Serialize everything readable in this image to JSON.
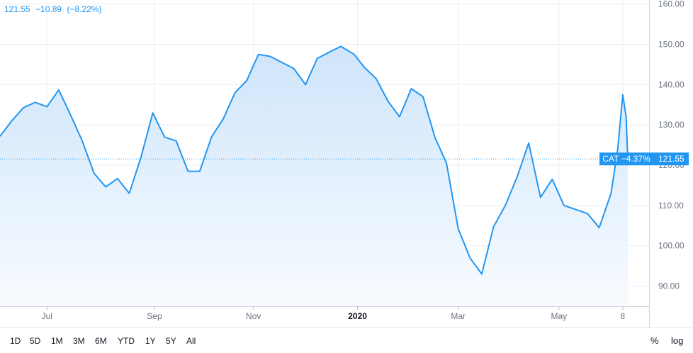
{
  "header": {
    "price": "121.55",
    "change": "−10.89",
    "change_pct": "(−8.22%)"
  },
  "colors": {
    "line": "#2196f3",
    "fill_top": "#cfe5fb",
    "fill_bottom": "#f7fbff",
    "grid": "#eceef2",
    "axis_text": "#6b7280"
  },
  "chart_data": {
    "type": "area",
    "symbol": "CAT",
    "x_ticks": [
      "Jul",
      "Sep",
      "Nov",
      "2020",
      "Mar",
      "May",
      "8"
    ],
    "y_ticks": [
      "160.00",
      "150.00",
      "140.00",
      "130.00",
      "120.00",
      "110.00",
      "100.00",
      "90.00"
    ],
    "ylim": [
      85,
      161
    ],
    "current_price": 121.55,
    "current_label": "CAT −4.37%",
    "current_value_label": "121.55",
    "series": [
      {
        "x": [
          "2019-06-03",
          "2019-06-10",
          "2019-06-17",
          "2019-06-24",
          "2019-07-01",
          "2019-07-08",
          "2019-07-15",
          "2019-07-22",
          "2019-07-29",
          "2019-08-05",
          "2019-08-12",
          "2019-08-19",
          "2019-08-26",
          "2019-09-02",
          "2019-09-09",
          "2019-09-16",
          "2019-09-23",
          "2019-09-30",
          "2019-10-07",
          "2019-10-14",
          "2019-10-21",
          "2019-10-28",
          "2019-11-04",
          "2019-11-11",
          "2019-11-18",
          "2019-11-25",
          "2019-12-02",
          "2019-12-09",
          "2019-12-16",
          "2019-12-23",
          "2019-12-31",
          "2020-01-06",
          "2020-01-13",
          "2020-01-20",
          "2020-01-27",
          "2020-02-03",
          "2020-02-10",
          "2020-02-17",
          "2020-02-24",
          "2020-03-02",
          "2020-03-09",
          "2020-03-16",
          "2020-03-23",
          "2020-03-30",
          "2020-04-06",
          "2020-04-13",
          "2020-04-20",
          "2020-04-27",
          "2020-05-04",
          "2020-05-11",
          "2020-05-18",
          "2020-05-25",
          "2020-06-01",
          "2020-06-05",
          "2020-06-08",
          "2020-06-10",
          "2020-06-11"
        ],
        "values": [
          127.2,
          131.0,
          134.3,
          135.6,
          134.5,
          138.7,
          132.5,
          126.0,
          118.0,
          114.6,
          116.7,
          113.0,
          122.0,
          133.0,
          127.0,
          126.0,
          118.5,
          118.5,
          127.0,
          131.5,
          138.0,
          141.0,
          147.5,
          147.0,
          145.5,
          144.0,
          140.0,
          146.5,
          148.0,
          149.5,
          147.5,
          144.3,
          141.5,
          136.0,
          132.0,
          139.0,
          137.0,
          127.0,
          120.5,
          104.2,
          97.0,
          93.0,
          104.7,
          110.0,
          117.0,
          125.5,
          112.0,
          116.5,
          110.0,
          109.0,
          108.0,
          104.5,
          113.0,
          124.0,
          137.5,
          132.0,
          121.55
        ]
      }
    ]
  },
  "toolbar": {
    "ranges": [
      "1D",
      "5D",
      "1M",
      "3M",
      "6M",
      "YTD",
      "1Y",
      "5Y",
      "All"
    ],
    "percent": "%",
    "log": "log"
  }
}
